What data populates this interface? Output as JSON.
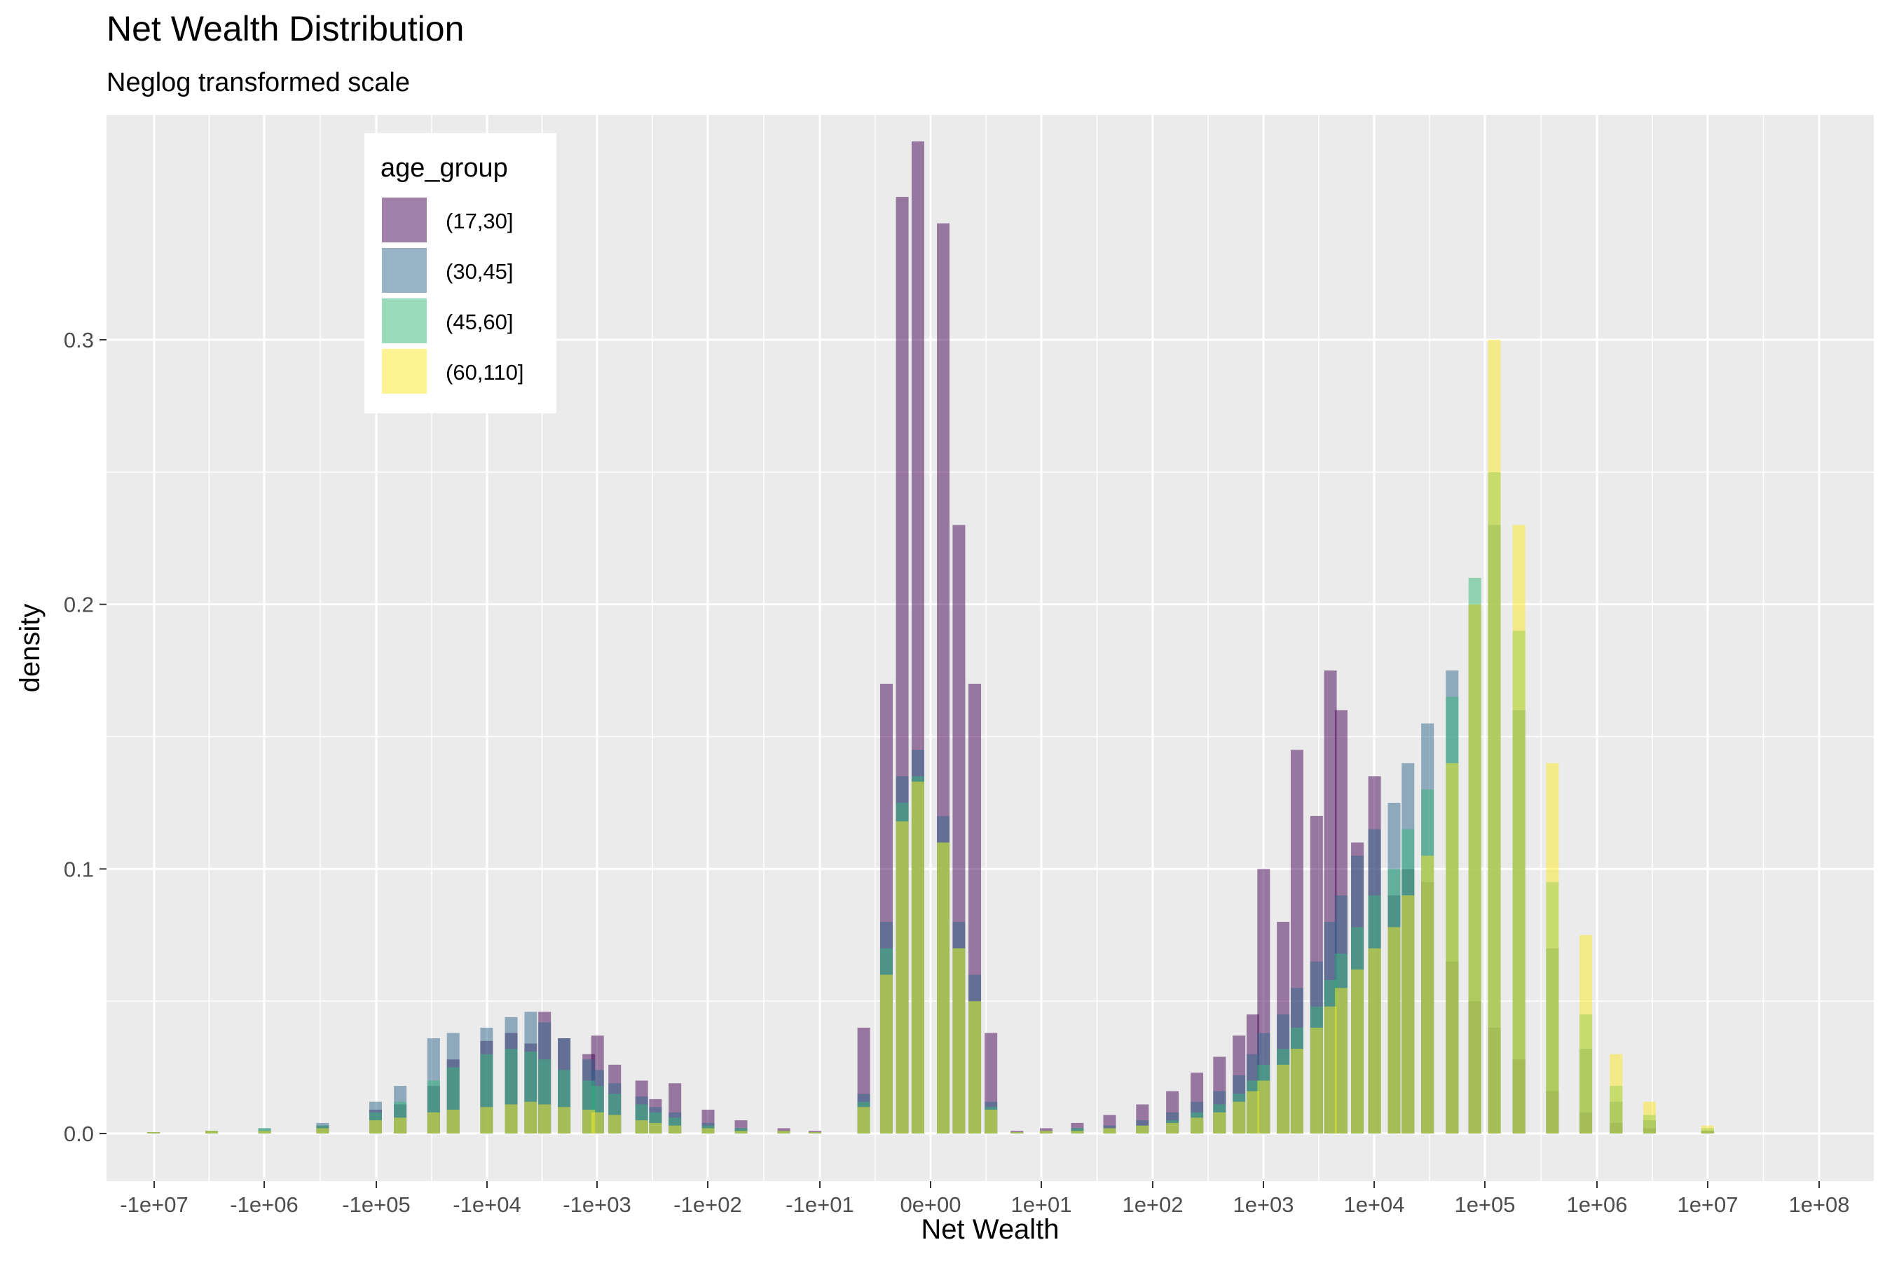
{
  "chart_data": {
    "type": "bar",
    "subtype": "overlaid-histogram",
    "title": "Net Wealth Distribution",
    "subtitle": "Neglog transformed scale",
    "xlabel": "Net Wealth",
    "ylabel": "density",
    "x_scale": "neglog",
    "x_ticks": [
      "-1e+07",
      "-1e+06",
      "-1e+05",
      "-1e+04",
      "-1e+03",
      "-1e+02",
      "-1e+01",
      "0e+00",
      "1e+01",
      "1e+02",
      "1e+03",
      "1e+04",
      "1e+05",
      "1e+06",
      "1e+07",
      "1e+08"
    ],
    "x_tick_values": [
      -10000000,
      -1000000,
      -100000,
      -10000,
      -1000,
      -100,
      -10,
      0,
      10,
      100,
      1000,
      10000,
      100000,
      1000000,
      10000000,
      100000000
    ],
    "y_ticks": [
      "0.0",
      "0.1",
      "0.2",
      "0.3"
    ],
    "ylim": [
      -0.018,
      0.385
    ],
    "grid": true,
    "background": "#ebebeb",
    "bar_opacity": 0.5,
    "legend": {
      "title": "age_group",
      "position": "top-left",
      "entries": [
        "(17,30]",
        "(30,45]",
        "(45,60]",
        "(60,110]"
      ]
    },
    "series": [
      {
        "name": "(17,30]",
        "color": "#440154",
        "values": [
          [
            -10000000,
            0.0005
          ],
          [
            -3000000,
            0.001
          ],
          [
            -1000000,
            0.001
          ],
          [
            -300000,
            0.003
          ],
          [
            -100000,
            0.009
          ],
          [
            -60000,
            0.011
          ],
          [
            -30000,
            0.018
          ],
          [
            -20000,
            0.028
          ],
          [
            -10000,
            0.035
          ],
          [
            -6000,
            0.038
          ],
          [
            -4000,
            0.034
          ],
          [
            -3000,
            0.046
          ],
          [
            -2000,
            0.036
          ],
          [
            -1200,
            0.03
          ],
          [
            -1000,
            0.037
          ],
          [
            -700,
            0.026
          ],
          [
            -400,
            0.02
          ],
          [
            -300,
            0.013
          ],
          [
            -200,
            0.019
          ],
          [
            -100,
            0.009
          ],
          [
            -50,
            0.005
          ],
          [
            -20,
            0.002
          ],
          [
            -10,
            0.001
          ],
          [
            -3,
            0.04
          ],
          [
            -1.5,
            0.17
          ],
          [
            -0.8,
            0.354
          ],
          [
            -0.3,
            0.375
          ],
          [
            0.3,
            0.344
          ],
          [
            0.8,
            0.23
          ],
          [
            1.5,
            0.17
          ],
          [
            2.5,
            0.038
          ],
          [
            5,
            0.001
          ],
          [
            10,
            0.002
          ],
          [
            20,
            0.004
          ],
          [
            40,
            0.007
          ],
          [
            80,
            0.011
          ],
          [
            150,
            0.016
          ],
          [
            250,
            0.023
          ],
          [
            400,
            0.029
          ],
          [
            600,
            0.037
          ],
          [
            800,
            0.045
          ],
          [
            1000,
            0.1
          ],
          [
            1500,
            0.08
          ],
          [
            2000,
            0.145
          ],
          [
            3000,
            0.12
          ],
          [
            4000,
            0.175
          ],
          [
            5000,
            0.16
          ],
          [
            7000,
            0.11
          ],
          [
            10000,
            0.135
          ],
          [
            15000,
            0.09
          ],
          [
            20000,
            0.1
          ],
          [
            30000,
            0.095
          ],
          [
            50000,
            0.065
          ],
          [
            80000,
            0.05
          ],
          [
            120000,
            0.04
          ],
          [
            200000,
            0.028
          ],
          [
            400000,
            0.016
          ],
          [
            800000,
            0.008
          ],
          [
            1500000,
            0.004
          ],
          [
            3000000,
            0.002
          ],
          [
            10000000,
            0.001
          ]
        ]
      },
      {
        "name": "(30,45]",
        "color": "#31688e",
        "values": [
          [
            -10000000,
            0.0005
          ],
          [
            -3000000,
            0.001
          ],
          [
            -1000000,
            0.002
          ],
          [
            -300000,
            0.004
          ],
          [
            -100000,
            0.012
          ],
          [
            -60000,
            0.018
          ],
          [
            -30000,
            0.036
          ],
          [
            -20000,
            0.038
          ],
          [
            -10000,
            0.04
          ],
          [
            -6000,
            0.044
          ],
          [
            -4000,
            0.046
          ],
          [
            -3000,
            0.042
          ],
          [
            -2000,
            0.036
          ],
          [
            -1200,
            0.028
          ],
          [
            -1000,
            0.024
          ],
          [
            -700,
            0.019
          ],
          [
            -400,
            0.014
          ],
          [
            -300,
            0.01
          ],
          [
            -200,
            0.008
          ],
          [
            -100,
            0.004
          ],
          [
            -50,
            0.002
          ],
          [
            -20,
            0.001
          ],
          [
            -10,
            0.0005
          ],
          [
            -3,
            0.015
          ],
          [
            -1.5,
            0.08
          ],
          [
            -0.8,
            0.135
          ],
          [
            -0.3,
            0.145
          ],
          [
            0.3,
            0.12
          ],
          [
            0.8,
            0.08
          ],
          [
            1.5,
            0.06
          ],
          [
            2.5,
            0.012
          ],
          [
            5,
            0.0005
          ],
          [
            10,
            0.001
          ],
          [
            20,
            0.002
          ],
          [
            40,
            0.003
          ],
          [
            80,
            0.005
          ],
          [
            150,
            0.008
          ],
          [
            250,
            0.012
          ],
          [
            400,
            0.016
          ],
          [
            600,
            0.022
          ],
          [
            800,
            0.03
          ],
          [
            1000,
            0.038
          ],
          [
            1500,
            0.045
          ],
          [
            2000,
            0.055
          ],
          [
            3000,
            0.065
          ],
          [
            4000,
            0.08
          ],
          [
            5000,
            0.09
          ],
          [
            7000,
            0.105
          ],
          [
            10000,
            0.115
          ],
          [
            15000,
            0.125
          ],
          [
            20000,
            0.14
          ],
          [
            30000,
            0.155
          ],
          [
            50000,
            0.175
          ],
          [
            80000,
            0.2
          ],
          [
            120000,
            0.23
          ],
          [
            200000,
            0.16
          ],
          [
            400000,
            0.07
          ],
          [
            800000,
            0.032
          ],
          [
            1500000,
            0.012
          ],
          [
            3000000,
            0.005
          ],
          [
            10000000,
            0.001
          ]
        ]
      },
      {
        "name": "(45,60]",
        "color": "#35b779",
        "values": [
          [
            -10000000,
            0.0005
          ],
          [
            -3000000,
            0.001
          ],
          [
            -1000000,
            0.002
          ],
          [
            -300000,
            0.003
          ],
          [
            -100000,
            0.008
          ],
          [
            -60000,
            0.012
          ],
          [
            -30000,
            0.02
          ],
          [
            -20000,
            0.025
          ],
          [
            -10000,
            0.03
          ],
          [
            -6000,
            0.032
          ],
          [
            -4000,
            0.031
          ],
          [
            -3000,
            0.028
          ],
          [
            -2000,
            0.024
          ],
          [
            -1200,
            0.02
          ],
          [
            -1000,
            0.018
          ],
          [
            -700,
            0.015
          ],
          [
            -400,
            0.011
          ],
          [
            -300,
            0.008
          ],
          [
            -200,
            0.006
          ],
          [
            -100,
            0.003
          ],
          [
            -50,
            0.002
          ],
          [
            -20,
            0.001
          ],
          [
            -10,
            0.0005
          ],
          [
            -3,
            0.012
          ],
          [
            -1.5,
            0.07
          ],
          [
            -0.8,
            0.125
          ],
          [
            -0.3,
            0.135
          ],
          [
            0.3,
            0.11
          ],
          [
            0.8,
            0.07
          ],
          [
            1.5,
            0.05
          ],
          [
            2.5,
            0.01
          ],
          [
            5,
            0.0005
          ],
          [
            10,
            0.001
          ],
          [
            20,
            0.002
          ],
          [
            40,
            0.002
          ],
          [
            80,
            0.003
          ],
          [
            150,
            0.005
          ],
          [
            250,
            0.008
          ],
          [
            400,
            0.011
          ],
          [
            600,
            0.015
          ],
          [
            800,
            0.02
          ],
          [
            1000,
            0.026
          ],
          [
            1500,
            0.032
          ],
          [
            2000,
            0.04
          ],
          [
            3000,
            0.048
          ],
          [
            4000,
            0.058
          ],
          [
            5000,
            0.068
          ],
          [
            7000,
            0.078
          ],
          [
            10000,
            0.09
          ],
          [
            15000,
            0.1
          ],
          [
            20000,
            0.115
          ],
          [
            30000,
            0.13
          ],
          [
            50000,
            0.165
          ],
          [
            80000,
            0.21
          ],
          [
            120000,
            0.25
          ],
          [
            200000,
            0.19
          ],
          [
            400000,
            0.095
          ],
          [
            800000,
            0.045
          ],
          [
            1500000,
            0.018
          ],
          [
            3000000,
            0.007
          ],
          [
            10000000,
            0.002
          ]
        ]
      },
      {
        "name": "(60,110]",
        "color": "#fde725",
        "values": [
          [
            -10000000,
            0.0005
          ],
          [
            -3000000,
            0.001
          ],
          [
            -1000000,
            0.001
          ],
          [
            -300000,
            0.002
          ],
          [
            -100000,
            0.005
          ],
          [
            -60000,
            0.006
          ],
          [
            -30000,
            0.008
          ],
          [
            -20000,
            0.009
          ],
          [
            -10000,
            0.01
          ],
          [
            -6000,
            0.011
          ],
          [
            -4000,
            0.012
          ],
          [
            -3000,
            0.011
          ],
          [
            -2000,
            0.01
          ],
          [
            -1200,
            0.009
          ],
          [
            -1000,
            0.008
          ],
          [
            -700,
            0.007
          ],
          [
            -400,
            0.005
          ],
          [
            -300,
            0.004
          ],
          [
            -200,
            0.003
          ],
          [
            -100,
            0.002
          ],
          [
            -50,
            0.001
          ],
          [
            -20,
            0.001
          ],
          [
            -10,
            0.0005
          ],
          [
            -3,
            0.01
          ],
          [
            -1.5,
            0.06
          ],
          [
            -0.8,
            0.118
          ],
          [
            -0.3,
            0.133
          ],
          [
            0.3,
            0.11
          ],
          [
            0.8,
            0.07
          ],
          [
            1.5,
            0.05
          ],
          [
            2.5,
            0.009
          ],
          [
            5,
            0.0005
          ],
          [
            10,
            0.001
          ],
          [
            20,
            0.001
          ],
          [
            40,
            0.002
          ],
          [
            80,
            0.003
          ],
          [
            150,
            0.004
          ],
          [
            250,
            0.006
          ],
          [
            400,
            0.008
          ],
          [
            600,
            0.012
          ],
          [
            800,
            0.016
          ],
          [
            1000,
            0.02
          ],
          [
            1500,
            0.026
          ],
          [
            2000,
            0.032
          ],
          [
            3000,
            0.04
          ],
          [
            4000,
            0.048
          ],
          [
            5000,
            0.055
          ],
          [
            7000,
            0.062
          ],
          [
            10000,
            0.07
          ],
          [
            15000,
            0.078
          ],
          [
            20000,
            0.09
          ],
          [
            30000,
            0.105
          ],
          [
            50000,
            0.14
          ],
          [
            80000,
            0.2
          ],
          [
            120000,
            0.3
          ],
          [
            200000,
            0.23
          ],
          [
            400000,
            0.14
          ],
          [
            800000,
            0.075
          ],
          [
            1500000,
            0.03
          ],
          [
            3000000,
            0.012
          ],
          [
            10000000,
            0.003
          ]
        ]
      }
    ]
  }
}
